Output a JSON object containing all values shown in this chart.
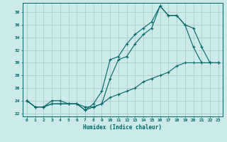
{
  "xlabel": "Humidex (Indice chaleur)",
  "bg_color": "#cceaea",
  "grid_color": "#aacccc",
  "line_color": "#006666",
  "xlim": [
    -0.5,
    23.5
  ],
  "ylim": [
    21.5,
    39.5
  ],
  "xticks": [
    0,
    1,
    2,
    3,
    4,
    5,
    6,
    7,
    8,
    9,
    10,
    11,
    12,
    13,
    14,
    15,
    16,
    17,
    18,
    19,
    20,
    21,
    22,
    23
  ],
  "yticks": [
    22,
    24,
    26,
    28,
    30,
    32,
    34,
    36,
    38
  ],
  "line1_x": [
    0,
    1,
    2,
    3,
    4,
    5,
    6,
    7,
    8,
    9,
    10,
    11,
    12,
    13,
    14,
    15,
    16,
    17,
    18,
    19,
    20,
    21,
    22,
    23
  ],
  "line1_y": [
    24,
    23,
    23,
    23.5,
    23.5,
    23.5,
    23.5,
    22.5,
    23.5,
    25.5,
    30.5,
    31,
    33,
    34.5,
    35.5,
    36.5,
    39,
    37.5,
    37.5,
    36,
    32.5,
    30,
    30,
    30
  ],
  "line2_x": [
    0,
    1,
    2,
    3,
    4,
    5,
    6,
    7,
    8,
    9,
    10,
    11,
    12,
    13,
    14,
    15,
    16,
    17,
    18,
    19,
    20,
    21,
    22,
    23
  ],
  "line2_y": [
    24,
    23,
    23,
    24,
    24,
    23.5,
    23.5,
    23,
    23,
    23.5,
    27.5,
    30.5,
    31,
    33,
    34.5,
    35.5,
    39,
    37.5,
    37.5,
    36,
    35.5,
    32.5,
    30,
    30
  ],
  "line3_x": [
    0,
    1,
    2,
    3,
    4,
    5,
    6,
    7,
    8,
    9,
    10,
    11,
    12,
    13,
    14,
    15,
    16,
    17,
    18,
    19,
    20,
    21,
    22,
    23
  ],
  "line3_y": [
    24,
    23,
    23,
    23.5,
    23.5,
    23.5,
    23.5,
    22.5,
    23,
    23.5,
    24.5,
    25,
    25.5,
    26,
    27,
    27.5,
    28,
    28.5,
    29.5,
    30,
    30,
    30,
    30,
    30
  ]
}
